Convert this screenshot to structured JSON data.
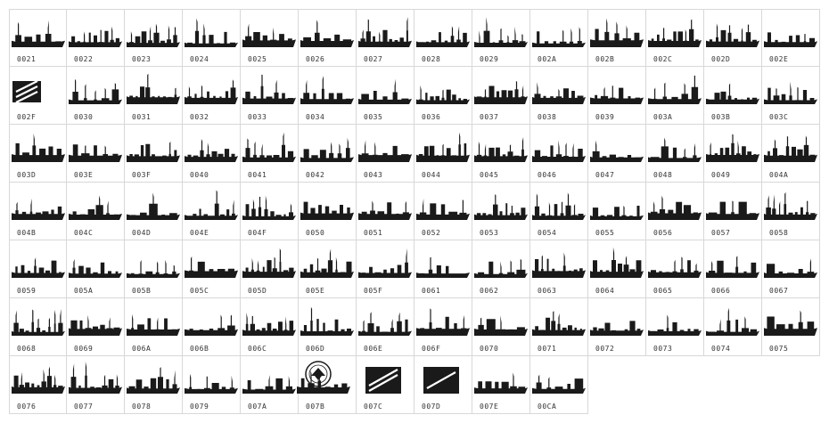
{
  "font_preview": {
    "glyph_color": "#1a1a1a",
    "grid_color": "#d8d8d8",
    "glyphs": [
      {
        "code": "0021",
        "icon": "ship-silhouette"
      },
      {
        "code": "0022",
        "icon": "ship-silhouette"
      },
      {
        "code": "0023",
        "icon": "ship-silhouette"
      },
      {
        "code": "0024",
        "icon": "ship-silhouette"
      },
      {
        "code": "0025",
        "icon": "ship-silhouette"
      },
      {
        "code": "0026",
        "icon": "ship-silhouette"
      },
      {
        "code": "0027",
        "icon": "ship-silhouette"
      },
      {
        "code": "0028",
        "icon": "ship-silhouette"
      },
      {
        "code": "0029",
        "icon": "ship-silhouette"
      },
      {
        "code": "002A",
        "icon": "ship-silhouette"
      },
      {
        "code": "002B",
        "icon": "ship-silhouette"
      },
      {
        "code": "002C",
        "icon": "ship-silhouette"
      },
      {
        "code": "002D",
        "icon": "ship-silhouette"
      },
      {
        "code": "002E",
        "icon": "ship-silhouette"
      },
      {
        "code": "002F",
        "icon": "rank-insignia-three-stripes"
      },
      {
        "code": "0030",
        "icon": "ship-silhouette"
      },
      {
        "code": "0031",
        "icon": "ship-silhouette"
      },
      {
        "code": "0032",
        "icon": "ship-silhouette"
      },
      {
        "code": "0033",
        "icon": "ship-silhouette"
      },
      {
        "code": "0034",
        "icon": "ship-silhouette"
      },
      {
        "code": "0035",
        "icon": "ship-silhouette"
      },
      {
        "code": "0036",
        "icon": "ship-silhouette"
      },
      {
        "code": "0037",
        "icon": "ship-silhouette"
      },
      {
        "code": "0038",
        "icon": "ship-silhouette"
      },
      {
        "code": "0039",
        "icon": "ship-silhouette"
      },
      {
        "code": "003A",
        "icon": "ship-silhouette"
      },
      {
        "code": "003B",
        "icon": "ship-silhouette"
      },
      {
        "code": "003C",
        "icon": "ship-silhouette"
      },
      {
        "code": "003D",
        "icon": "ship-silhouette"
      },
      {
        "code": "003E",
        "icon": "ship-silhouette"
      },
      {
        "code": "003F",
        "icon": "ship-silhouette"
      },
      {
        "code": "0040",
        "icon": "ship-silhouette"
      },
      {
        "code": "0041",
        "icon": "ship-silhouette"
      },
      {
        "code": "0042",
        "icon": "ship-silhouette"
      },
      {
        "code": "0043",
        "icon": "ship-silhouette"
      },
      {
        "code": "0044",
        "icon": "ship-silhouette"
      },
      {
        "code": "0045",
        "icon": "ship-silhouette"
      },
      {
        "code": "0046",
        "icon": "ship-silhouette"
      },
      {
        "code": "0047",
        "icon": "ship-silhouette"
      },
      {
        "code": "0048",
        "icon": "ship-silhouette"
      },
      {
        "code": "0049",
        "icon": "ship-silhouette"
      },
      {
        "code": "004A",
        "icon": "ship-silhouette"
      },
      {
        "code": "004B",
        "icon": "ship-silhouette"
      },
      {
        "code": "004C",
        "icon": "ship-silhouette"
      },
      {
        "code": "004D",
        "icon": "ship-silhouette"
      },
      {
        "code": "004E",
        "icon": "ship-silhouette"
      },
      {
        "code": "004F",
        "icon": "ship-silhouette"
      },
      {
        "code": "0050",
        "icon": "ship-silhouette"
      },
      {
        "code": "0051",
        "icon": "ship-silhouette"
      },
      {
        "code": "0052",
        "icon": "ship-silhouette"
      },
      {
        "code": "0053",
        "icon": "ship-silhouette"
      },
      {
        "code": "0054",
        "icon": "ship-silhouette"
      },
      {
        "code": "0055",
        "icon": "ship-silhouette"
      },
      {
        "code": "0056",
        "icon": "ship-silhouette"
      },
      {
        "code": "0057",
        "icon": "ship-silhouette"
      },
      {
        "code": "0058",
        "icon": "ship-silhouette"
      },
      {
        "code": "0059",
        "icon": "ship-silhouette"
      },
      {
        "code": "005A",
        "icon": "ship-silhouette"
      },
      {
        "code": "005B",
        "icon": "ship-silhouette"
      },
      {
        "code": "005C",
        "icon": "ship-silhouette"
      },
      {
        "code": "005D",
        "icon": "ship-silhouette"
      },
      {
        "code": "005E",
        "icon": "ship-silhouette"
      },
      {
        "code": "005F",
        "icon": "ship-silhouette"
      },
      {
        "code": "0061",
        "icon": "ship-silhouette"
      },
      {
        "code": "0062",
        "icon": "ship-silhouette"
      },
      {
        "code": "0063",
        "icon": "ship-silhouette"
      },
      {
        "code": "0064",
        "icon": "ship-silhouette"
      },
      {
        "code": "0065",
        "icon": "ship-silhouette"
      },
      {
        "code": "0066",
        "icon": "ship-silhouette"
      },
      {
        "code": "0067",
        "icon": "ship-silhouette"
      },
      {
        "code": "0068",
        "icon": "ship-silhouette"
      },
      {
        "code": "0069",
        "icon": "ship-silhouette"
      },
      {
        "code": "006A",
        "icon": "ship-silhouette"
      },
      {
        "code": "006B",
        "icon": "ship-silhouette"
      },
      {
        "code": "006C",
        "icon": "ship-silhouette"
      },
      {
        "code": "006D",
        "icon": "ship-silhouette"
      },
      {
        "code": "006E",
        "icon": "ship-silhouette"
      },
      {
        "code": "006F",
        "icon": "ship-silhouette"
      },
      {
        "code": "0070",
        "icon": "ship-silhouette"
      },
      {
        "code": "0071",
        "icon": "ship-silhouette"
      },
      {
        "code": "0072",
        "icon": "ship-silhouette"
      },
      {
        "code": "0073",
        "icon": "ship-silhouette"
      },
      {
        "code": "0074",
        "icon": "ship-silhouette"
      },
      {
        "code": "0075",
        "icon": "ship-silhouette"
      },
      {
        "code": "0076",
        "icon": "ship-silhouette"
      },
      {
        "code": "0077",
        "icon": "ship-silhouette"
      },
      {
        "code": "0078",
        "icon": "ship-silhouette"
      },
      {
        "code": "0079",
        "icon": "ship-silhouette"
      },
      {
        "code": "007A",
        "icon": "ship-silhouette"
      },
      {
        "code": "007B",
        "icon": "navy-seal-emblem"
      },
      {
        "code": "007C",
        "icon": "rank-insignia-two-stripes"
      },
      {
        "code": "007D",
        "icon": "rank-insignia-one-stripe"
      },
      {
        "code": "007E",
        "icon": "ship-silhouette"
      },
      {
        "code": "00CA",
        "icon": "ship-silhouette"
      }
    ]
  }
}
